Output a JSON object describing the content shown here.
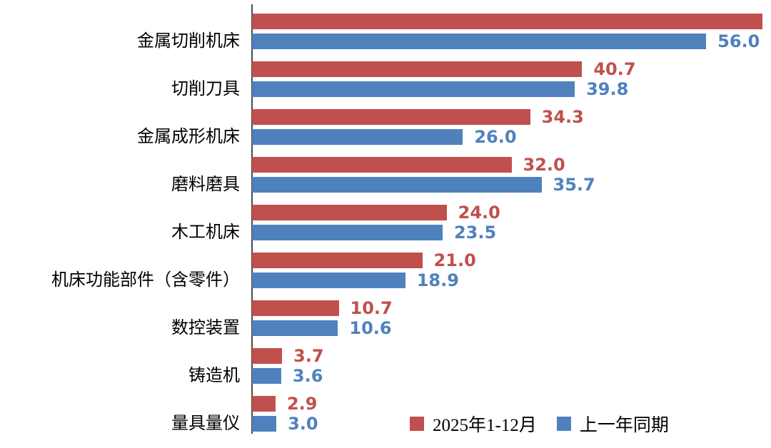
{
  "chart_data": {
    "type": "bar",
    "orientation": "horizontal",
    "title": "",
    "xlabel": "",
    "ylabel": "",
    "xlim": [
      0,
      64
    ],
    "grid": false,
    "legend_position": "bottom-right",
    "axis_color": "#4a4a4a",
    "categories": [
      "金属切削机床",
      "切削刀具",
      "金属成形机床",
      "磨料磨具",
      "木工机床",
      "机床功能部件（含零件）",
      "数控装置",
      "铸造机",
      "量具量仪"
    ],
    "series": [
      {
        "name": "2025年1-12月",
        "color": "#c0504d",
        "values": [
          62.9,
          40.7,
          34.3,
          32.0,
          24.0,
          21.0,
          10.7,
          3.7,
          2.9
        ],
        "value_labels": [
          "",
          "40.7",
          "34.3",
          "32.0",
          "24.0",
          "21.0",
          "10.7",
          "3.7",
          "2.9"
        ]
      },
      {
        "name": "上一年同期",
        "color": "#4f81bd",
        "values": [
          56.0,
          39.8,
          26.0,
          35.7,
          23.5,
          18.9,
          10.6,
          3.6,
          3.0
        ],
        "value_labels": [
          "56.0",
          "39.8",
          "26.0",
          "35.7",
          "23.5",
          "18.9",
          "10.6",
          "3.6",
          "3.0"
        ]
      }
    ]
  },
  "legend": {
    "items": [
      {
        "label": "2025年1-12月",
        "color": "#c0504d"
      },
      {
        "label": "上一年同期",
        "color": "#4f81bd"
      }
    ]
  }
}
